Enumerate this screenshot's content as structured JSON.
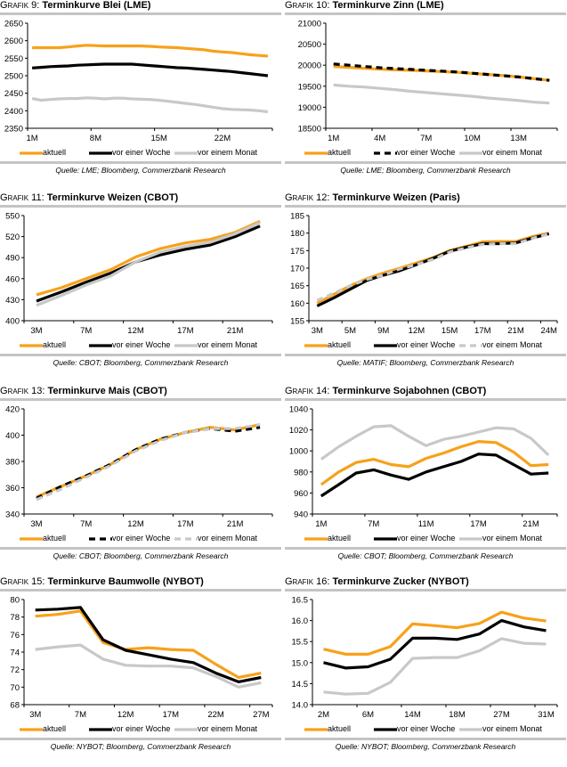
{
  "legend_labels": [
    "aktuell",
    "vor einer Woche",
    "vor einem Monat"
  ],
  "colors": {
    "aktuell": "#f7a11a",
    "vor_einer_woche": "#000000",
    "vor_einem_monat": "#c8c8c8",
    "rule": "#c4c4c4"
  },
  "chart_data": [
    {
      "type": "line",
      "label": "Grafik 9:",
      "title": "Terminkurve Blei (LME)",
      "source": "Quelle: LME; Bloomberg, Commerzbank Research",
      "ylim": [
        2350,
        2650
      ],
      "yticks": [
        2350,
        2400,
        2450,
        2500,
        2550,
        2600,
        2650
      ],
      "categories": [
        "1M",
        "",
        "",
        "",
        "",
        "",
        "",
        "8M",
        "",
        "",
        "",
        "",
        "",
        "",
        "15M",
        "",
        "",
        "",
        "",
        "",
        "",
        "22M",
        "",
        "",
        "",
        "",
        ""
      ],
      "series": [
        {
          "name": "aktuell",
          "style": "solid",
          "values": [
            2580,
            2580,
            2580,
            2580,
            2582,
            2585,
            2587,
            2586,
            2585,
            2585,
            2585,
            2585,
            2585,
            2584,
            2582,
            2581,
            2580,
            2578,
            2576,
            2574,
            2570,
            2568,
            2566,
            2563,
            2560,
            2558,
            2556
          ]
        },
        {
          "name": "vor einer Woche",
          "style": "solid",
          "values": [
            2522,
            2524,
            2526,
            2527,
            2528,
            2530,
            2531,
            2532,
            2533,
            2533,
            2533,
            2533,
            2531,
            2529,
            2527,
            2525,
            2523,
            2522,
            2520,
            2518,
            2516,
            2514,
            2512,
            2509,
            2506,
            2503,
            2500
          ]
        },
        {
          "name": "vor einem Monat",
          "style": "solid",
          "values": [
            2435,
            2430,
            2432,
            2434,
            2435,
            2435,
            2437,
            2436,
            2434,
            2436,
            2436,
            2434,
            2433,
            2432,
            2430,
            2427,
            2424,
            2421,
            2418,
            2414,
            2410,
            2406,
            2404,
            2403,
            2402,
            2400,
            2397
          ]
        }
      ]
    },
    {
      "type": "line",
      "label": "Grafik 10:",
      "title": "Terminkurve Zinn (LME)",
      "source": "Quelle: LME; Bloomberg, Commerzbank Research",
      "ylim": [
        18500,
        21000
      ],
      "yticks": [
        18500,
        19000,
        19500,
        20000,
        20500,
        21000
      ],
      "categories": [
        "1M",
        "",
        "",
        "4M",
        "",
        "",
        "7M",
        "",
        "",
        "10M",
        "",
        "",
        "13M",
        "",
        ""
      ],
      "series": [
        {
          "name": "aktuell",
          "style": "solid",
          "values": [
            19970,
            19950,
            19925,
            19905,
            19890,
            19880,
            19865,
            19850,
            19830,
            19805,
            19780,
            19755,
            19720,
            19680,
            19640
          ]
        },
        {
          "name": "vor einer Woche",
          "style": "dashed",
          "values": [
            20030,
            20000,
            19970,
            19940,
            19920,
            19900,
            19880,
            19860,
            19840,
            19810,
            19780,
            19750,
            19720,
            19680,
            19640
          ]
        },
        {
          "name": "vor einem Monat",
          "style": "solid",
          "values": [
            19530,
            19500,
            19480,
            19450,
            19420,
            19380,
            19350,
            19320,
            19290,
            19260,
            19220,
            19190,
            19160,
            19120,
            19100
          ]
        }
      ]
    },
    {
      "type": "line",
      "label": "Grafik 11:",
      "title": "Terminkurve Weizen (CBOT)",
      "source": "Quelle: CBOT; Bloomberg, Commerzbank Research",
      "ylim": [
        400,
        550
      ],
      "yticks": [
        400,
        430,
        460,
        490,
        520,
        550
      ],
      "categories": [
        "3M",
        "",
        "7M",
        "",
        "12M",
        "",
        "17M",
        "",
        "21M",
        ""
      ],
      "series": [
        {
          "name": "aktuell",
          "style": "solid",
          "values": [
            437,
            447,
            460,
            473,
            491,
            503,
            511,
            516,
            526,
            542
          ]
        },
        {
          "name": "vor einer Woche",
          "style": "solid",
          "values": [
            428,
            441,
            455,
            468,
            484,
            494,
            502,
            508,
            520,
            535
          ]
        },
        {
          "name": "vor einem Monat",
          "style": "solid",
          "values": [
            422,
            436,
            451,
            464,
            484,
            498,
            506,
            512,
            524,
            540
          ]
        }
      ]
    },
    {
      "type": "line",
      "label": "Grafik 12:",
      "title": "Terminkurve Weizen (Paris)",
      "source": "Quelle: MATIF; Bloomberg, Commerzbank Research",
      "ylim": [
        155,
        185
      ],
      "yticks": [
        155,
        160,
        165,
        170,
        175,
        180,
        185
      ],
      "categories": [
        "3M",
        "",
        "5M",
        "",
        "9M",
        "",
        "12M",
        "",
        "15M",
        "",
        "17M",
        "",
        "21M",
        "",
        "24M"
      ],
      "series": [
        {
          "name": "aktuell",
          "style": "solid",
          "values": [
            160,
            162.5,
            165,
            167,
            168.6,
            170,
            171.5,
            173,
            175,
            176.2,
            177.5,
            177.6,
            177.6,
            179,
            180
          ]
        },
        {
          "name": "vor einer Woche",
          "style": "solid",
          "values": [
            159.2,
            161.5,
            164,
            166.5,
            168,
            169.3,
            171,
            172.8,
            174.8,
            176,
            177,
            177,
            177.2,
            178.6,
            179.8
          ]
        },
        {
          "name": "vor einem Monat",
          "style": "dashed",
          "values": [
            160.8,
            162.8,
            165,
            166.8,
            168,
            169.8,
            171,
            172.5,
            174.6,
            175.8,
            176.8,
            177,
            177,
            178.5,
            179.8
          ]
        }
      ]
    },
    {
      "type": "line",
      "label": "Grafik 13:",
      "title": "Terminkurve Mais (CBOT)",
      "source": "Quelle: CBOT; Bloomberg, Commerzbank Research",
      "ylim": [
        340,
        420
      ],
      "yticks": [
        340,
        360,
        380,
        400,
        420
      ],
      "categories": [
        "3M",
        "",
        "7M",
        "",
        "12M",
        "",
        "17M",
        "",
        "21M",
        ""
      ],
      "series": [
        {
          "name": "aktuell",
          "style": "solid",
          "values": [
            353,
            361,
            369,
            378,
            389,
            397,
            402,
            406,
            404,
            408
          ]
        },
        {
          "name": "vor einer Woche",
          "style": "dashed",
          "values": [
            352,
            361,
            369,
            378,
            389,
            397,
            402,
            405,
            403,
            406
          ]
        },
        {
          "name": "vor einem Monat",
          "style": "dashed",
          "values": [
            351,
            359,
            368,
            377,
            388,
            396,
            402,
            405,
            405,
            408
          ]
        }
      ]
    },
    {
      "type": "line",
      "label": "Grafik 14:",
      "title": "Terminkurve Sojabohnen (CBOT)",
      "source": "Quelle: CBOT; Bloomberg, Commerzbank Research",
      "ylim": [
        940,
        1040
      ],
      "yticks": [
        940,
        960,
        980,
        1000,
        1020,
        1040
      ],
      "categories": [
        "1M",
        "",
        "",
        "7M",
        "",
        "",
        "11M",
        "",
        "",
        "17M",
        "",
        "",
        "21M",
        ""
      ],
      "series": [
        {
          "name": "aktuell",
          "style": "solid",
          "values": [
            968,
            980,
            989,
            992,
            987,
            985,
            993,
            998,
            1004,
            1009,
            1008,
            999,
            986,
            987
          ]
        },
        {
          "name": "vor einer Woche",
          "style": "solid",
          "values": [
            957,
            968,
            979,
            982,
            977,
            973,
            980,
            985,
            990,
            997,
            996,
            987,
            978,
            979
          ]
        },
        {
          "name": "vor einem Monat",
          "style": "solid",
          "values": [
            992,
            1004,
            1014,
            1023,
            1024,
            1014,
            1005,
            1011,
            1014,
            1018,
            1022,
            1021,
            1012,
            996
          ]
        }
      ]
    },
    {
      "type": "line",
      "label": "Grafik 15:",
      "title": "Terminkurve Baumwolle (NYBOT)",
      "source": "Quelle: NYBOT; Bloomberg, Commerzbank Research",
      "ylim": [
        68,
        80
      ],
      "yticks": [
        68,
        70,
        72,
        74,
        76,
        78,
        80
      ],
      "categories": [
        "3M",
        "",
        "7M",
        "",
        "12M",
        "",
        "17M",
        "",
        "22M",
        "",
        "27M"
      ],
      "series": [
        {
          "name": "aktuell",
          "style": "solid",
          "values": [
            78.1,
            78.3,
            78.7,
            75.1,
            74.3,
            74.5,
            74.3,
            74.2,
            72.6,
            71.1,
            71.6
          ]
        },
        {
          "name": "vor einer Woche",
          "style": "solid",
          "values": [
            78.8,
            78.9,
            79.1,
            75.4,
            74.2,
            73.7,
            73.2,
            72.8,
            71.6,
            70.6,
            71.1
          ]
        },
        {
          "name": "vor einem Monat",
          "style": "solid",
          "values": [
            74.3,
            74.6,
            74.8,
            73.2,
            72.5,
            72.4,
            72.4,
            72.2,
            71.2,
            70.0,
            70.5
          ]
        }
      ]
    },
    {
      "type": "line",
      "label": "Grafik 16:",
      "title": "Terminkurve Zucker (NYBOT)",
      "source": "Quelle: NYBOT; Bloomberg, Commerzbank Research",
      "ylim": [
        14.0,
        16.5
      ],
      "yticks": [
        "14.0",
        "14.5",
        "15.0",
        "15.5",
        "16.0",
        "16.5"
      ],
      "categories": [
        "2M",
        "",
        "6M",
        "",
        "14M",
        "",
        "18M",
        "",
        "27M",
        "",
        "31M"
      ],
      "series": [
        {
          "name": "aktuell",
          "style": "solid",
          "values": [
            15.32,
            15.2,
            15.2,
            15.38,
            15.92,
            15.88,
            15.83,
            15.93,
            16.2,
            16.06,
            15.99
          ]
        },
        {
          "name": "vor einer Woche",
          "style": "solid",
          "values": [
            15.0,
            14.87,
            14.9,
            15.08,
            15.58,
            15.58,
            15.55,
            15.68,
            16.0,
            15.85,
            15.76
          ]
        },
        {
          "name": "vor einem Monat",
          "style": "solid",
          "values": [
            14.3,
            14.25,
            14.27,
            14.53,
            15.1,
            15.12,
            15.12,
            15.28,
            15.57,
            15.46,
            15.44
          ]
        }
      ]
    }
  ]
}
